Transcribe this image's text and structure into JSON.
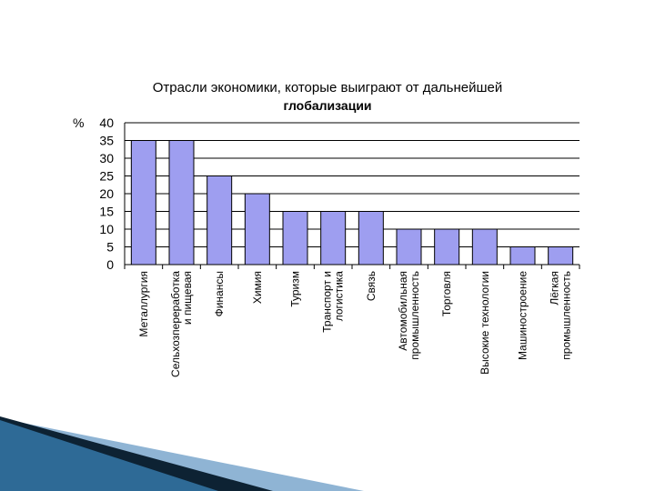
{
  "chart_data": {
    "type": "bar",
    "title": "Отрасли экономики, которые выиграют от дальнейшей глобализации",
    "title_lines": [
      "Отрасли  экономики, которые выиграют от дальнейшей",
      "глобализации"
    ],
    "ylabel": "%",
    "ylim": [
      0,
      40
    ],
    "yticks": [
      0,
      5,
      10,
      15,
      20,
      25,
      30,
      35,
      40
    ],
    "grid": true,
    "categories": [
      [
        "Металлургия"
      ],
      [
        "Сельхозпереработка",
        "и пищевая"
      ],
      [
        "Финансы"
      ],
      [
        "Химия"
      ],
      [
        "Туризм"
      ],
      [
        "Транспорт и",
        "логистика"
      ],
      [
        "Связь"
      ],
      [
        "Автомобильная",
        "промышленность"
      ],
      [
        "Торговля"
      ],
      [
        "Высокие технологии"
      ],
      [
        "Машиностроение"
      ],
      [
        "Лёгкая",
        "промышленность"
      ]
    ],
    "values": [
      35,
      35,
      25,
      20,
      15,
      15,
      15,
      10,
      10,
      10,
      5,
      5
    ],
    "bar_color": "#9e9ef0"
  },
  "decoration": {
    "colors": [
      "#2e6a96",
      "#8fb4d4",
      "#0d2233"
    ]
  }
}
